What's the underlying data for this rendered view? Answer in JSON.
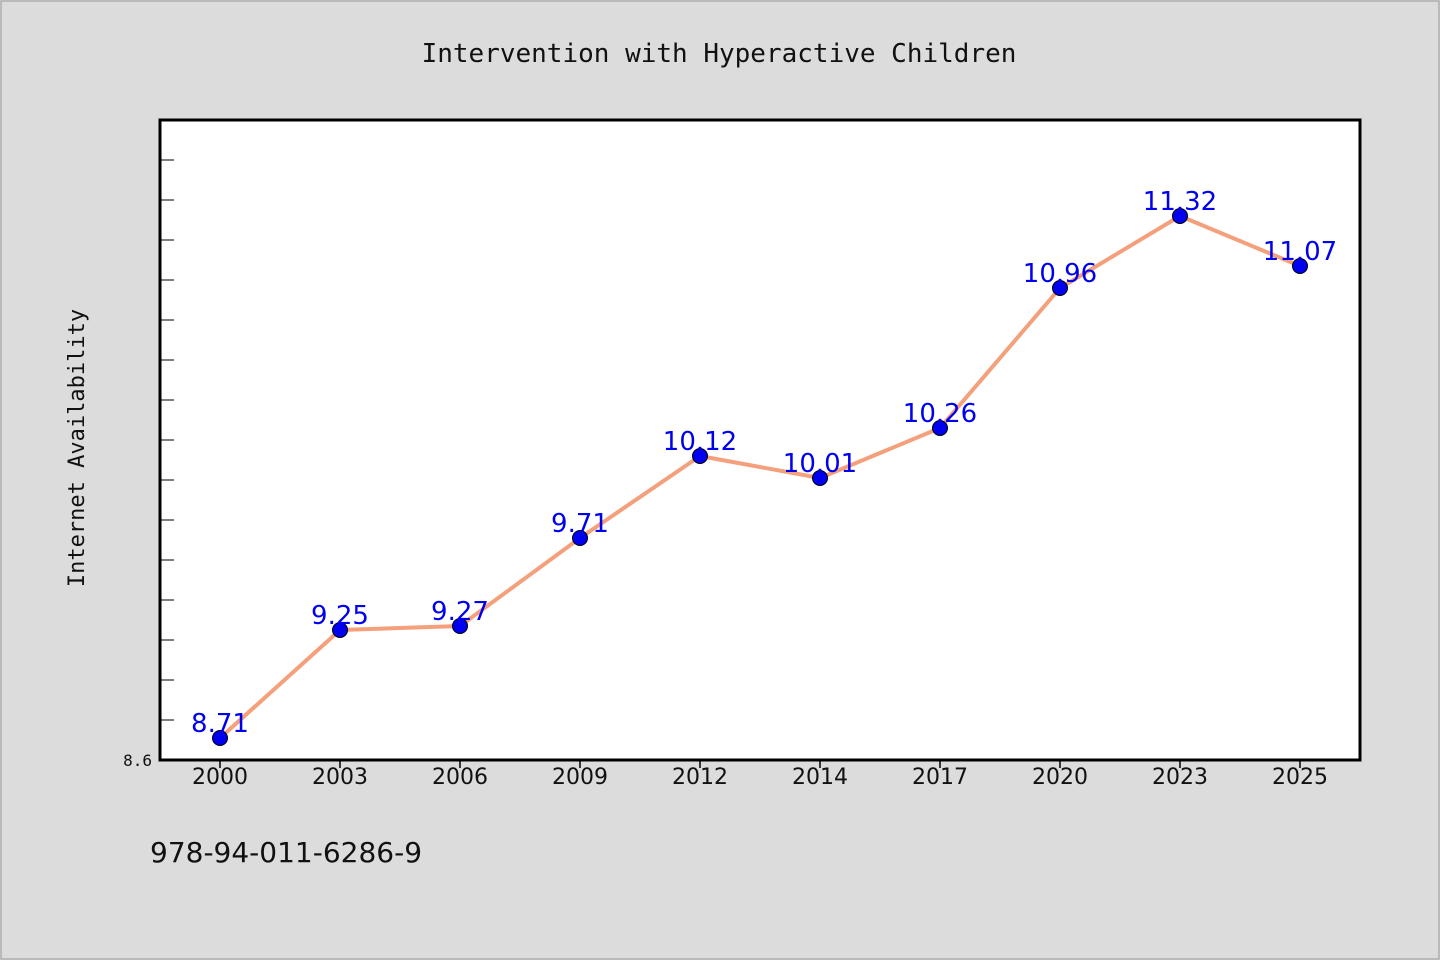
{
  "chart_data": {
    "type": "line",
    "title": "Intervention with Hyperactive Children",
    "xlabel": "",
    "ylabel": "Internet Availability",
    "categories": [
      "2000",
      "2003",
      "2006",
      "2009",
      "2012",
      "2014",
      "2017",
      "2020",
      "2023",
      "2025"
    ],
    "series": [
      {
        "values": [
          8.71,
          9.25,
          9.27,
          9.71,
          10.12,
          10.01,
          10.26,
          10.96,
          11.32,
          11.07
        ]
      }
    ],
    "ylim": [
      8.6,
      11.8
    ],
    "y_tick_labels": [
      "8.6"
    ],
    "grid": false,
    "legend": "none",
    "line_color": "#f4a07c",
    "marker_color": "#0000ee",
    "label_color": "#0000ee"
  },
  "footnote": "978-94-011-6286-9"
}
